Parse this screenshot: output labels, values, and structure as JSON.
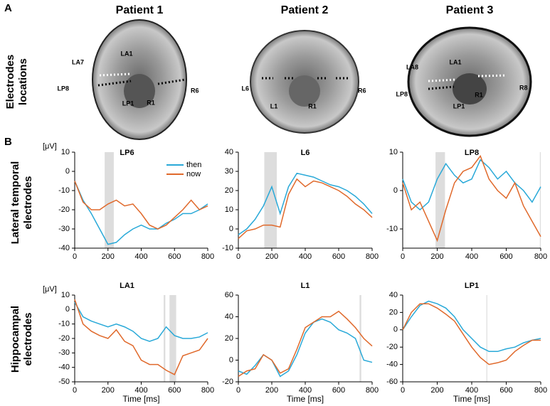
{
  "figure": {
    "panel_a": "A",
    "panel_b": "B",
    "patients": [
      "Patient 1",
      "Patient 2",
      "Patient 3"
    ],
    "row_labels": [
      [
        "Electrodes",
        "locations"
      ],
      [
        "Lateral temporal",
        "electrodes"
      ],
      [
        "Hippocampal",
        "electrodes"
      ]
    ],
    "electrodes": [
      [
        "LA7",
        "LA1",
        "LP8",
        "LP1",
        "R1",
        "R6"
      ],
      [
        "L6",
        "L1",
        "R1",
        "R6"
      ],
      [
        "LA8",
        "LA1",
        "LP8",
        "LP1",
        "R1",
        "R8"
      ]
    ]
  },
  "chart_data": [
    {
      "type": "line",
      "title": "LP6",
      "ylabel": "[μV]",
      "legend": true,
      "shade_color": "#dddddd",
      "x": [
        0,
        50,
        100,
        150,
        200,
        250,
        300,
        350,
        400,
        450,
        500,
        550,
        600,
        650,
        700,
        750,
        800
      ],
      "series": [
        {
          "name": "then",
          "color": "#29a9d8",
          "values": [
            -5,
            -15,
            -22,
            -30,
            -38,
            -37,
            -33,
            -30,
            -28,
            -30,
            -30,
            -27,
            -25,
            -22,
            -22,
            -20,
            -17
          ]
        },
        {
          "name": "now",
          "color": "#e0692b",
          "values": [
            -5,
            -16,
            -20,
            -20,
            -17,
            -15,
            -18,
            -17,
            -22,
            -28,
            -30,
            -28,
            -24,
            -20,
            -15,
            -20,
            -18
          ]
        }
      ],
      "shaded": [
        [
          180,
          235
        ]
      ],
      "xlim": [
        0,
        800
      ],
      "xticks": [
        0,
        200,
        400,
        600,
        800
      ],
      "ylim": [
        -40,
        10
      ],
      "yticks": [
        -40,
        -30,
        -20,
        -10,
        0,
        10
      ]
    },
    {
      "type": "line",
      "title": "L6",
      "shade_color": "#dddddd",
      "x": [
        0,
        50,
        100,
        150,
        200,
        250,
        300,
        350,
        400,
        450,
        500,
        550,
        600,
        650,
        700,
        750,
        800
      ],
      "series": [
        {
          "color": "#29a9d8",
          "values": [
            -3,
            0,
            5,
            12,
            22,
            8,
            22,
            29,
            28,
            27,
            25,
            23,
            22,
            20,
            17,
            13,
            8
          ]
        },
        {
          "color": "#e0692b",
          "values": [
            -5,
            -1,
            0,
            2,
            2,
            1,
            18,
            26,
            22,
            25,
            24,
            22,
            20,
            17,
            13,
            10,
            6
          ]
        }
      ],
      "shaded": [
        [
          155,
          230
        ]
      ],
      "xlim": [
        0,
        800
      ],
      "xticks": [
        0,
        200,
        400,
        600,
        800
      ],
      "ylim": [
        -10,
        40
      ],
      "yticks": [
        -10,
        0,
        10,
        20,
        30,
        40
      ]
    },
    {
      "type": "line",
      "title": "LP8",
      "shade_color": "#dddddd",
      "x": [
        0,
        50,
        100,
        150,
        200,
        250,
        300,
        350,
        400,
        450,
        500,
        550,
        600,
        650,
        700,
        750,
        800
      ],
      "series": [
        {
          "color": "#29a9d8",
          "values": [
            3,
            -3,
            -5,
            -3,
            3,
            7,
            4,
            2,
            3,
            8,
            6,
            3,
            5,
            2,
            0,
            -3,
            1
          ]
        },
        {
          "color": "#e0692b",
          "values": [
            2,
            -5,
            -3,
            -8,
            -13,
            -5,
            2,
            5,
            6,
            9,
            3,
            0,
            -2,
            2,
            -4,
            -8,
            -12
          ]
        }
      ],
      "shaded": [
        [
          190,
          245
        ],
        [
          795,
          800
        ]
      ],
      "xlim": [
        0,
        800
      ],
      "xticks": [
        0,
        200,
        400,
        600,
        800
      ],
      "ylim": [
        -15,
        10
      ],
      "yticks": [
        -10,
        0,
        10
      ]
    },
    {
      "type": "line",
      "title": "LA1",
      "ylabel": "[μV]",
      "xlabel": "Time [ms]",
      "shade_color": "#dddddd",
      "x": [
        0,
        50,
        100,
        150,
        200,
        250,
        300,
        350,
        400,
        450,
        500,
        550,
        600,
        650,
        700,
        750,
        800
      ],
      "series": [
        {
          "color": "#29a9d8",
          "values": [
            5,
            -5,
            -8,
            -10,
            -12,
            -10,
            -12,
            -15,
            -20,
            -22,
            -20,
            -12,
            -18,
            -20,
            -20,
            -19,
            -16
          ]
        },
        {
          "color": "#e0692b",
          "values": [
            7,
            -10,
            -15,
            -18,
            -20,
            -14,
            -22,
            -25,
            -35,
            -38,
            -38,
            -42,
            -45,
            -32,
            -30,
            -28,
            -20
          ]
        }
      ],
      "shaded": [
        [
          535,
          545
        ],
        [
          570,
          610
        ]
      ],
      "xlim": [
        0,
        800
      ],
      "xticks": [
        0,
        200,
        400,
        600,
        800
      ],
      "ylim": [
        -50,
        10
      ],
      "yticks": [
        -50,
        -40,
        -30,
        -20,
        -10,
        0,
        10
      ]
    },
    {
      "type": "line",
      "title": "L1",
      "xlabel": "Time [ms]",
      "shade_color": "#dddddd",
      "x": [
        0,
        50,
        100,
        150,
        200,
        250,
        300,
        350,
        400,
        450,
        500,
        550,
        600,
        650,
        700,
        750,
        800
      ],
      "series": [
        {
          "color": "#29a9d8",
          "values": [
            -10,
            -13,
            -5,
            5,
            0,
            -15,
            -10,
            5,
            25,
            35,
            38,
            35,
            28,
            25,
            20,
            0,
            -2
          ]
        },
        {
          "color": "#e0692b",
          "values": [
            -15,
            -10,
            -8,
            5,
            0,
            -12,
            -8,
            10,
            30,
            35,
            40,
            40,
            45,
            38,
            30,
            20,
            13
          ]
        }
      ],
      "shaded": [
        [
          725,
          735
        ]
      ],
      "xlim": [
        0,
        800
      ],
      "xticks": [
        0,
        200,
        400,
        600,
        800
      ],
      "ylim": [
        -20,
        60
      ],
      "yticks": [
        -20,
        0,
        20,
        40,
        60
      ]
    },
    {
      "type": "line",
      "title": "LP1",
      "xlabel": "Time [ms]",
      "shade_color": "#dddddd",
      "x": [
        0,
        50,
        100,
        150,
        200,
        250,
        300,
        350,
        400,
        450,
        500,
        550,
        600,
        650,
        700,
        750,
        800
      ],
      "series": [
        {
          "color": "#29a9d8",
          "values": [
            0,
            15,
            28,
            33,
            30,
            25,
            15,
            0,
            -10,
            -20,
            -25,
            -25,
            -22,
            -20,
            -15,
            -12,
            -10
          ]
        },
        {
          "color": "#e0692b",
          "values": [
            0,
            20,
            30,
            30,
            25,
            18,
            10,
            -5,
            -20,
            -32,
            -40,
            -38,
            -35,
            -25,
            -18,
            -12,
            -12
          ]
        }
      ],
      "shaded": [
        [
          485,
          490
        ]
      ],
      "xlim": [
        0,
        800
      ],
      "xticks": [
        0,
        200,
        400,
        600,
        800
      ],
      "ylim": [
        -60,
        40
      ],
      "yticks": [
        -60,
        -40,
        -20,
        0,
        20,
        40
      ]
    }
  ]
}
